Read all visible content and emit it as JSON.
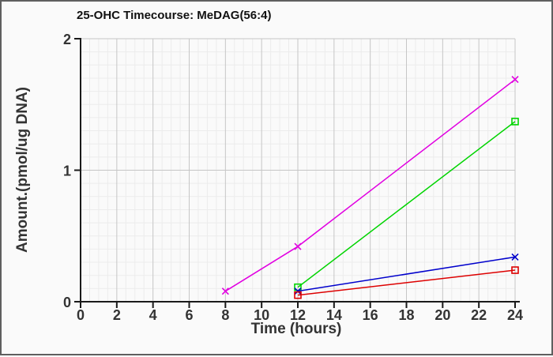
{
  "window": {
    "background": "#fafafa",
    "border_color": "#5f5f5f"
  },
  "chart_data": {
    "type": "line",
    "title": "25-OHC Timecourse: MeDAG(56:4)",
    "xlabel": "Time (hours)",
    "ylabel": "Amount.(pmol/ug DNA)",
    "xlim": [
      0,
      24
    ],
    "ylim": [
      0,
      2
    ],
    "x_ticks": [
      0,
      2,
      4,
      6,
      8,
      10,
      12,
      14,
      16,
      18,
      20,
      22,
      24
    ],
    "y_ticks": [
      0,
      1,
      2
    ],
    "x_minor_step": 0.5,
    "y_minor_step": 0.1,
    "grid": true,
    "legend_position": "none",
    "colors": {
      "minor_grid": "#ececec",
      "major_grid": "#c6c6c6",
      "axis": "#1a1a1a",
      "tick_label": "#333333"
    },
    "series": [
      {
        "name": "magenta",
        "color": "#e100e1",
        "marker": "x",
        "x": [
          8,
          12,
          24
        ],
        "values": [
          0.08,
          0.42,
          1.69
        ]
      },
      {
        "name": "green",
        "color": "#00d400",
        "marker": "square",
        "x": [
          12,
          24
        ],
        "values": [
          0.11,
          1.37
        ]
      },
      {
        "name": "blue",
        "color": "#0000cc",
        "marker": "x",
        "x": [
          12,
          24
        ],
        "values": [
          0.08,
          0.34
        ]
      },
      {
        "name": "red",
        "color": "#dd0000",
        "marker": "square",
        "x": [
          12,
          24
        ],
        "values": [
          0.05,
          0.24
        ]
      }
    ]
  }
}
